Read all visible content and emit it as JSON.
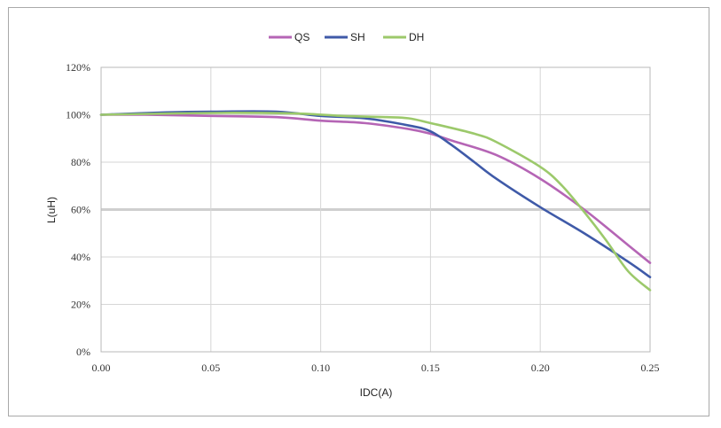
{
  "chart_data": {
    "type": "line",
    "title": "",
    "xlabel": "IDC(A)",
    "ylabel": "L(uH)",
    "xlim": [
      0,
      0.25
    ],
    "ylim": [
      0,
      120
    ],
    "x_ticks": [
      "0.00",
      "0.05",
      "0.10",
      "0.15",
      "0.20",
      "0.25"
    ],
    "y_ticks": [
      "0%",
      "20%",
      "40%",
      "60%",
      "80%",
      "100%",
      "120%"
    ],
    "grid": true,
    "legend_position": "top-center",
    "series": [
      {
        "name": "QS",
        "color": "#b565b5",
        "points": [
          [
            0.0,
            100
          ],
          [
            0.02,
            100
          ],
          [
            0.05,
            99.5
          ],
          [
            0.08,
            99
          ],
          [
            0.1,
            97.5
          ],
          [
            0.12,
            96.5
          ],
          [
            0.14,
            94
          ],
          [
            0.15,
            92
          ],
          [
            0.16,
            89
          ],
          [
            0.18,
            83
          ],
          [
            0.2,
            73
          ],
          [
            0.22,
            60
          ],
          [
            0.24,
            45
          ],
          [
            0.25,
            37.5
          ]
        ]
      },
      {
        "name": "SH",
        "color": "#3f5aa8",
        "points": [
          [
            0.0,
            100
          ],
          [
            0.03,
            101
          ],
          [
            0.05,
            101.3
          ],
          [
            0.08,
            101.3
          ],
          [
            0.1,
            99.5
          ],
          [
            0.12,
            98.5
          ],
          [
            0.14,
            95.5
          ],
          [
            0.15,
            93
          ],
          [
            0.16,
            87
          ],
          [
            0.17,
            80
          ],
          [
            0.18,
            73
          ],
          [
            0.2,
            61
          ],
          [
            0.22,
            50
          ],
          [
            0.24,
            38
          ],
          [
            0.25,
            31.5
          ]
        ]
      },
      {
        "name": "DH",
        "color": "#9cc96b",
        "points": [
          [
            0.0,
            100
          ],
          [
            0.03,
            100.5
          ],
          [
            0.06,
            100.8
          ],
          [
            0.09,
            100.5
          ],
          [
            0.11,
            99.5
          ],
          [
            0.13,
            99
          ],
          [
            0.14,
            98.5
          ],
          [
            0.15,
            96.5
          ],
          [
            0.17,
            92
          ],
          [
            0.18,
            88.5
          ],
          [
            0.2,
            78
          ],
          [
            0.21,
            70
          ],
          [
            0.22,
            59
          ],
          [
            0.23,
            47
          ],
          [
            0.24,
            34
          ],
          [
            0.25,
            26
          ]
        ]
      }
    ]
  }
}
